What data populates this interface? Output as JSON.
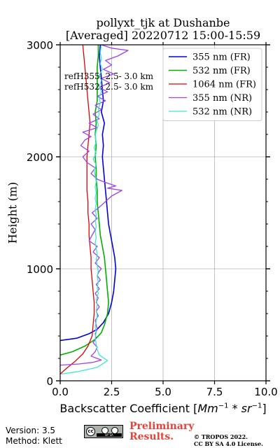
{
  "chart_data": {
    "type": "line",
    "title": [
      "pollyxt_tjk at Dushanbe",
      "[Averaged] 20220712 15:00-15:59"
    ],
    "xlabel": "Backscatter Coefficient",
    "xlabel_units": {
      "base1": "Mm",
      "exp1": "−1",
      "op": " * ",
      "base2": "sr",
      "exp2": "−1"
    },
    "ylabel": "Height (m)",
    "xlim": [
      0,
      10
    ],
    "ylim": [
      0,
      3000
    ],
    "xticks": [
      "0.0",
      "2.5",
      "5.0",
      "7.5",
      "10.0"
    ],
    "yticks": [
      "0",
      "1000",
      "2000",
      "3000"
    ],
    "grid": true,
    "legend_position": "top-right",
    "annotations": [
      "refH355:  2.5- 3.0 km",
      "refH532:  2.5- 3.0 km"
    ],
    "series": [
      {
        "name": "355 nm (FR)",
        "color": "#0000e6",
        "width": 1.6,
        "points": [
          [
            0,
            360
          ],
          [
            0.8,
            380
          ],
          [
            1.4,
            420
          ],
          [
            1.8,
            460
          ],
          [
            2.1,
            520
          ],
          [
            2.35,
            600
          ],
          [
            2.5,
            700
          ],
          [
            2.6,
            800
          ],
          [
            2.65,
            900
          ],
          [
            2.7,
            1000
          ],
          [
            2.65,
            1100
          ],
          [
            2.55,
            1200
          ],
          [
            2.45,
            1300
          ],
          [
            2.35,
            1400
          ],
          [
            2.3,
            1500
          ],
          [
            2.25,
            1600
          ],
          [
            2.2,
            1700
          ],
          [
            2.15,
            1800
          ],
          [
            2.1,
            1900
          ],
          [
            2.05,
            2000
          ],
          [
            2.1,
            2100
          ],
          [
            2.05,
            2200
          ],
          [
            2.15,
            2300
          ],
          [
            2.0,
            2400
          ],
          [
            2.1,
            2500
          ],
          [
            2.05,
            2600
          ],
          [
            2.0,
            2700
          ],
          [
            1.95,
            2800
          ],
          [
            1.9,
            2900
          ],
          [
            1.95,
            3000
          ]
        ]
      },
      {
        "name": "532 nm (FR)",
        "color": "#00b000",
        "width": 1.6,
        "points": [
          [
            0,
            230
          ],
          [
            0.6,
            260
          ],
          [
            1.2,
            310
          ],
          [
            1.7,
            370
          ],
          [
            2.0,
            430
          ],
          [
            2.15,
            500
          ],
          [
            2.3,
            600
          ],
          [
            2.35,
            700
          ],
          [
            2.3,
            800
          ],
          [
            2.25,
            900
          ],
          [
            2.2,
            1000
          ],
          [
            2.15,
            1100
          ],
          [
            2.05,
            1200
          ],
          [
            1.95,
            1300
          ],
          [
            1.9,
            1400
          ],
          [
            1.85,
            1500
          ],
          [
            1.8,
            1600
          ],
          [
            1.8,
            1700
          ],
          [
            1.75,
            1800
          ],
          [
            1.75,
            1900
          ],
          [
            1.7,
            2000
          ],
          [
            1.75,
            2100
          ],
          [
            1.7,
            2200
          ],
          [
            1.75,
            2300
          ],
          [
            1.7,
            2400
          ],
          [
            1.8,
            2500
          ],
          [
            1.8,
            2600
          ],
          [
            1.8,
            2700
          ],
          [
            1.8,
            2800
          ],
          [
            1.85,
            2900
          ],
          [
            1.85,
            3000
          ]
        ]
      },
      {
        "name": "1064 nm (FR)",
        "color": "#e00000",
        "width": 1.3,
        "points": [
          [
            0,
            60
          ],
          [
            0.3,
            110
          ],
          [
            0.7,
            170
          ],
          [
            1.1,
            240
          ],
          [
            1.35,
            310
          ],
          [
            1.55,
            400
          ],
          [
            1.6,
            500
          ],
          [
            1.65,
            600
          ],
          [
            1.65,
            700
          ],
          [
            1.6,
            800
          ],
          [
            1.55,
            900
          ],
          [
            1.5,
            1000
          ],
          [
            1.5,
            1100
          ],
          [
            1.45,
            1200
          ],
          [
            1.4,
            1300
          ],
          [
            1.4,
            1400
          ],
          [
            1.35,
            1500
          ],
          [
            1.35,
            1600
          ],
          [
            1.3,
            1700
          ],
          [
            1.3,
            1800
          ],
          [
            1.3,
            1900
          ],
          [
            1.3,
            2000
          ],
          [
            1.35,
            2100
          ],
          [
            1.4,
            2200
          ],
          [
            1.45,
            2300
          ],
          [
            1.4,
            2400
          ],
          [
            1.35,
            2500
          ],
          [
            1.3,
            2600
          ],
          [
            1.25,
            2700
          ],
          [
            1.2,
            2800
          ],
          [
            1.15,
            2900
          ],
          [
            1.1,
            3000
          ]
        ]
      },
      {
        "name": "355 nm (NR)",
        "color": "#a040f0",
        "width": 1.3,
        "points": [
          [
            0,
            140
          ],
          [
            0.9,
            150
          ],
          [
            1.6,
            165
          ],
          [
            2.0,
            185
          ],
          [
            1.5,
            220
          ],
          [
            1.7,
            260
          ],
          [
            1.8,
            300
          ],
          [
            1.6,
            340
          ],
          [
            1.75,
            380
          ],
          [
            1.7,
            420
          ],
          [
            1.8,
            460
          ],
          [
            1.75,
            500
          ],
          [
            1.7,
            540
          ],
          [
            1.85,
            580
          ],
          [
            1.75,
            620
          ],
          [
            1.9,
            660
          ],
          [
            1.75,
            700
          ],
          [
            1.85,
            740
          ],
          [
            1.7,
            780
          ],
          [
            1.9,
            820
          ],
          [
            1.75,
            860
          ],
          [
            1.95,
            900
          ],
          [
            1.8,
            940
          ],
          [
            1.9,
            980
          ],
          [
            2.0,
            1000
          ],
          [
            1.7,
            1050
          ],
          [
            1.9,
            1100
          ],
          [
            1.6,
            1150
          ],
          [
            1.8,
            1200
          ],
          [
            1.4,
            1250
          ],
          [
            1.55,
            1300
          ],
          [
            1.7,
            1350
          ],
          [
            1.5,
            1400
          ],
          [
            1.8,
            1450
          ],
          [
            1.55,
            1500
          ],
          [
            1.9,
            1550
          ],
          [
            2.2,
            1600
          ],
          [
            2.5,
            1650
          ],
          [
            3.0,
            1700
          ],
          [
            2.3,
            1720
          ],
          [
            2.7,
            1740
          ],
          [
            2.2,
            1770
          ],
          [
            1.8,
            1800
          ],
          [
            1.5,
            1850
          ],
          [
            1.7,
            1900
          ],
          [
            1.3,
            1950
          ],
          [
            1.1,
            2000
          ],
          [
            1.4,
            2050
          ],
          [
            1.0,
            2100
          ],
          [
            1.2,
            2150
          ],
          [
            1.5,
            2180
          ],
          [
            1.1,
            2220
          ],
          [
            1.8,
            2260
          ],
          [
            1.4,
            2300
          ],
          [
            1.9,
            2340
          ],
          [
            1.6,
            2380
          ],
          [
            2.0,
            2420
          ],
          [
            1.7,
            2460
          ],
          [
            2.2,
            2500
          ],
          [
            1.8,
            2540
          ],
          [
            2.3,
            2580
          ],
          [
            1.9,
            2620
          ],
          [
            2.4,
            2660
          ],
          [
            2.0,
            2700
          ],
          [
            2.6,
            2740
          ],
          [
            2.1,
            2780
          ],
          [
            2.5,
            2820
          ],
          [
            2.2,
            2860
          ],
          [
            2.8,
            2900
          ],
          [
            3.3,
            2950
          ],
          [
            2.5,
            2970
          ],
          [
            2.0,
            3000
          ]
        ]
      },
      {
        "name": "532 nm (NR)",
        "color": "#40e8c8",
        "width": 1.3,
        "points": [
          [
            0.05,
            60
          ],
          [
            0.8,
            80
          ],
          [
            1.8,
            120
          ],
          [
            2.3,
            180
          ],
          [
            1.9,
            230
          ],
          [
            1.8,
            280
          ],
          [
            1.75,
            330
          ],
          [
            1.7,
            380
          ],
          [
            1.75,
            430
          ],
          [
            1.7,
            480
          ],
          [
            1.75,
            530
          ],
          [
            1.8,
            580
          ],
          [
            1.75,
            630
          ],
          [
            1.8,
            680
          ],
          [
            1.75,
            730
          ],
          [
            1.85,
            780
          ],
          [
            1.8,
            830
          ],
          [
            1.85,
            880
          ],
          [
            1.8,
            930
          ],
          [
            1.85,
            980
          ],
          [
            1.8,
            1030
          ],
          [
            1.75,
            1080
          ],
          [
            1.8,
            1130
          ],
          [
            1.75,
            1180
          ],
          [
            1.7,
            1230
          ],
          [
            1.75,
            1280
          ],
          [
            1.7,
            1330
          ],
          [
            1.75,
            1380
          ],
          [
            1.7,
            1430
          ],
          [
            1.75,
            1480
          ],
          [
            1.7,
            1530
          ],
          [
            1.75,
            1580
          ],
          [
            1.7,
            1630
          ],
          [
            1.75,
            1680
          ],
          [
            1.7,
            1730
          ],
          [
            1.75,
            1780
          ],
          [
            1.7,
            1830
          ],
          [
            1.65,
            1880
          ],
          [
            1.75,
            1930
          ],
          [
            1.6,
            1980
          ],
          [
            1.75,
            2030
          ],
          [
            1.65,
            2080
          ],
          [
            1.75,
            2130
          ],
          [
            1.7,
            2180
          ],
          [
            1.75,
            2230
          ],
          [
            1.85,
            2280
          ],
          [
            1.8,
            2330
          ],
          [
            1.9,
            2380
          ],
          [
            1.85,
            2430
          ],
          [
            1.95,
            2480
          ],
          [
            1.9,
            2530
          ],
          [
            2.0,
            2580
          ],
          [
            1.9,
            2630
          ],
          [
            2.0,
            2680
          ],
          [
            1.9,
            2730
          ],
          [
            2.05,
            2780
          ],
          [
            1.95,
            2830
          ],
          [
            2.0,
            2880
          ],
          [
            1.95,
            2930
          ],
          [
            2.0,
            3000
          ]
        ]
      }
    ]
  },
  "footer": {
    "version": "Version: 3.5",
    "method": "Method: Klett",
    "preliminary_line1": "Preliminary",
    "preliminary_line2": "Results.",
    "copyright_line1": "© TROPOS 2022.",
    "copyright_line2": "CC BY SA 4.0 License.",
    "license_badge_text": "cc",
    "license_strip_text": "BY  SA"
  }
}
